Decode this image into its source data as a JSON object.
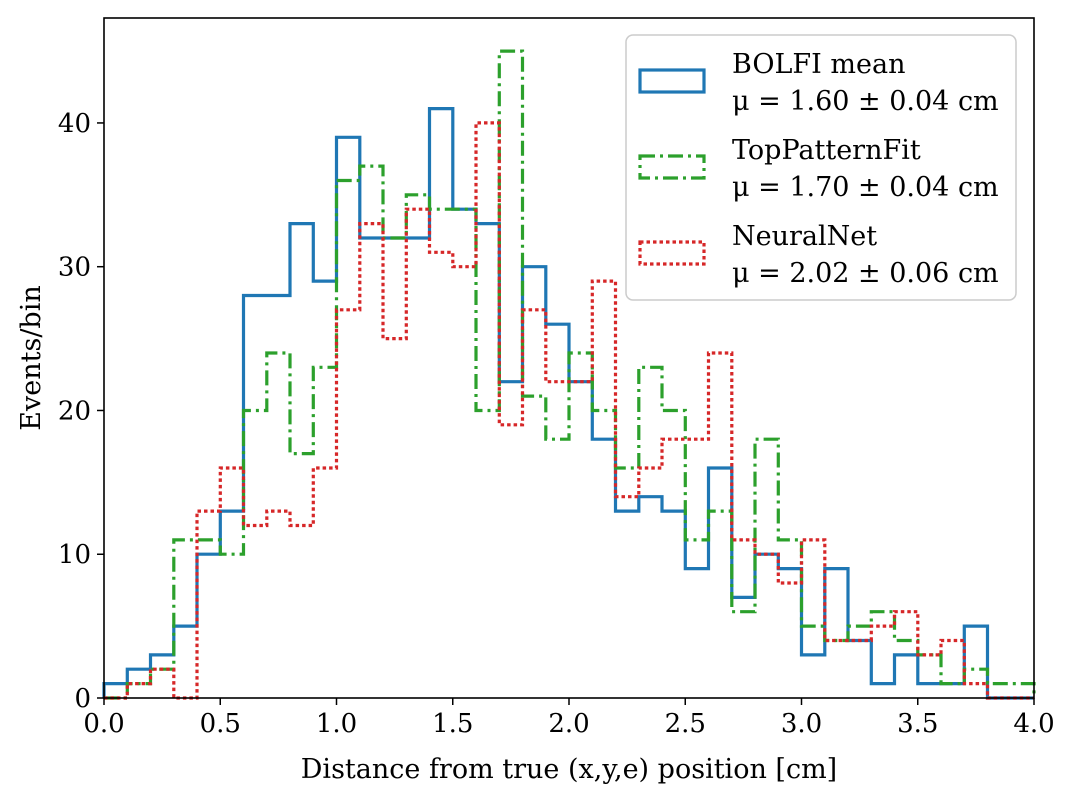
{
  "chart_data": {
    "type": "histogram",
    "xlabel": "Distance from true (x,y,e) position [cm]",
    "ylabel": "Events/bin",
    "xlim": [
      0.0,
      4.0
    ],
    "ylim": [
      0,
      47.3
    ],
    "xticks": [
      0.0,
      0.5,
      1.0,
      1.5,
      2.0,
      2.5,
      3.0,
      3.5,
      4.0
    ],
    "xtick_labels": [
      "0.0",
      "0.5",
      "1.0",
      "1.5",
      "2.0",
      "2.5",
      "3.0",
      "3.5",
      "4.0"
    ],
    "yticks": [
      0,
      10,
      20,
      30,
      40
    ],
    "ytick_labels": [
      "0",
      "10",
      "20",
      "30",
      "40"
    ],
    "bin_edges": [
      0.0,
      0.1,
      0.2,
      0.3,
      0.4,
      0.5,
      0.6,
      0.7,
      0.8,
      0.9,
      1.0,
      1.1,
      1.2,
      1.3,
      1.4,
      1.5,
      1.6,
      1.7,
      1.8,
      1.9,
      2.0,
      2.1,
      2.2,
      2.3,
      2.4,
      2.5,
      2.6,
      2.7,
      2.8,
      2.9,
      3.0,
      3.1,
      3.2,
      3.3,
      3.4,
      3.5,
      3.6,
      3.7,
      3.8,
      3.9,
      4.0
    ],
    "series": [
      {
        "name": "BOLFI mean",
        "stat": "μ = 1.60 ± 0.04 cm",
        "color": "#1f77b4",
        "linestyle": "solid",
        "values": [
          1,
          2,
          3,
          5,
          10,
          13,
          28,
          28,
          33,
          29,
          39,
          32,
          32,
          32,
          41,
          34,
          33,
          22,
          30,
          26,
          22,
          18,
          13,
          14,
          13,
          9,
          16,
          7,
          10,
          9,
          3,
          9,
          4,
          1,
          3,
          1,
          1,
          5,
          0,
          0
        ]
      },
      {
        "name": "TopPatternFit",
        "stat": "μ = 1.70 ± 0.04 cm",
        "color": "#2ca02c",
        "linestyle": "dashdot",
        "values": [
          0,
          1,
          2,
          11,
          11,
          10,
          20,
          24,
          17,
          23,
          36,
          37,
          32,
          35,
          34,
          34,
          20,
          45,
          21,
          18,
          24,
          20,
          16,
          23,
          20,
          11,
          13,
          6,
          18,
          11,
          5,
          4,
          5,
          6,
          4,
          3,
          1,
          2,
          1,
          1
        ]
      },
      {
        "name": "NeuralNet",
        "stat": "μ = 2.02 ± 0.06 cm",
        "color": "#d62728",
        "linestyle": "dotted",
        "values": [
          0,
          1,
          2,
          0,
          13,
          16,
          12,
          13,
          12,
          16,
          27,
          33,
          25,
          34,
          31,
          30,
          40,
          19,
          27,
          22,
          22,
          29,
          14,
          16,
          18,
          18,
          24,
          11,
          10,
          8,
          11,
          4,
          4,
          5,
          6,
          3,
          4,
          1,
          0,
          0
        ]
      }
    ],
    "legend": "top-right"
  }
}
